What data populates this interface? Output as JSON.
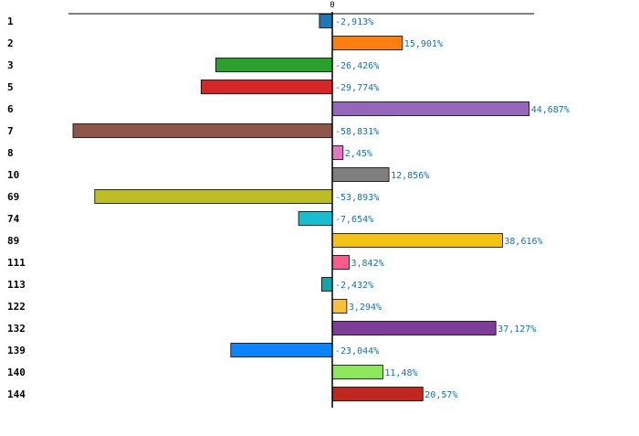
{
  "chart_data": {
    "type": "bar",
    "orientation": "horizontal",
    "title": "",
    "xlabel": "",
    "ylabel": "",
    "xlim": [
      -60,
      60
    ],
    "zero_tick_label": "0",
    "grid": false,
    "legend": "none",
    "categories": [
      "1",
      "2",
      "3",
      "5",
      "6",
      "7",
      "8",
      "10",
      "69",
      "74",
      "89",
      "111",
      "113",
      "122",
      "132",
      "139",
      "140",
      "144"
    ],
    "values": [
      -2.913,
      15.901,
      -26.426,
      -29.774,
      44.687,
      -58.831,
      2.45,
      12.856,
      -53.893,
      -7.654,
      38.616,
      3.842,
      -2.432,
      3.294,
      37.127,
      -23.044,
      11.48,
      20.57
    ],
    "value_labels": [
      "-2,913%",
      "15,901%",
      "-26,426%",
      "-29,774%",
      "44,687%",
      "-58,831%",
      "2,45%",
      "12,856%",
      "-53,893%",
      "-7,654%",
      "38,616%",
      "3,842%",
      "-2,432%",
      "3,294%",
      "37,127%",
      "-23,044%",
      "11,48%",
      "20,57%"
    ],
    "colors": [
      "#1f77b4",
      "#ff7f0e",
      "#2ca02c",
      "#d62728",
      "#9467bd",
      "#8c564b",
      "#e377c2",
      "#7f7f7f",
      "#bcbd22",
      "#17becf",
      "#f5c211",
      "#ff5a8c",
      "#15a3a3",
      "#f9bf3b",
      "#7d3c98",
      "#0a84ff",
      "#8ee65a",
      "#c0281f"
    ]
  }
}
